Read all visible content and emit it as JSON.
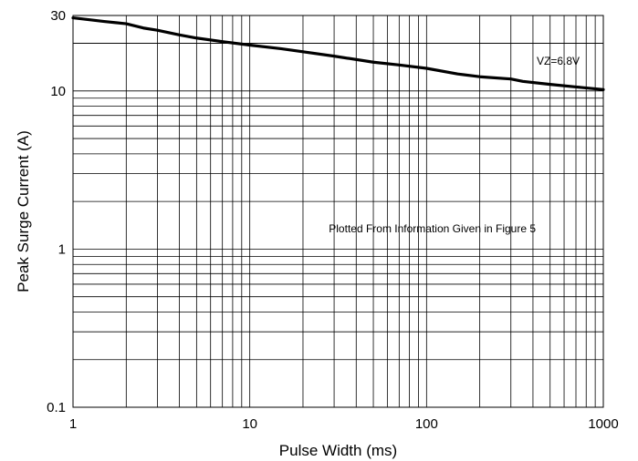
{
  "chart_data": {
    "type": "line",
    "title": "",
    "xlabel": "Pulse Width (ms)",
    "ylabel": "Peak Surge Current (A)",
    "x_scale": "log",
    "y_scale": "log",
    "xlim": [
      1,
      1000
    ],
    "ylim": [
      0.1,
      30
    ],
    "grid": true,
    "x_ticks": [
      1,
      10,
      100,
      1000
    ],
    "x_tick_labels": [
      "1",
      "10",
      "100",
      "1000"
    ],
    "y_ticks": [
      0.1,
      1,
      10,
      30
    ],
    "y_tick_labels": [
      "0.1",
      "1",
      "10",
      "30"
    ],
    "annotations": [
      {
        "text": "VZ=6.8V",
        "x": 420,
        "y": 15.5
      },
      {
        "text": "Plotted From Information Given in Figure 5",
        "x": 28,
        "y": 1.35
      }
    ],
    "series": [
      {
        "name": "",
        "x": [
          1,
          1.5,
          2,
          2.5,
          3,
          4,
          5,
          7,
          10,
          15,
          20,
          30,
          50,
          70,
          100,
          150,
          200,
          300,
          350,
          500,
          700,
          1000
        ],
        "y": [
          29.0,
          27.5,
          26.6,
          25.0,
          24.2,
          22.6,
          21.6,
          20.5,
          19.5,
          18.5,
          17.7,
          16.6,
          15.2,
          14.6,
          13.9,
          12.8,
          12.3,
          11.9,
          11.5,
          11.0,
          10.6,
          10.2
        ]
      }
    ]
  }
}
